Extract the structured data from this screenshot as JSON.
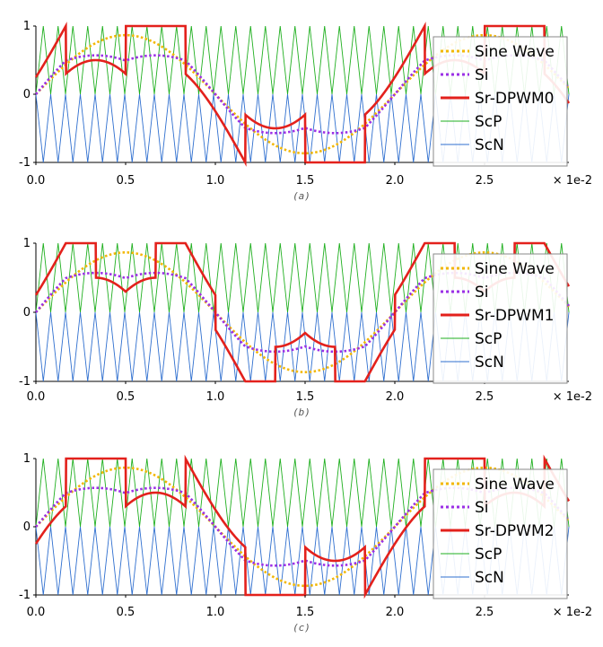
{
  "chart_data": [
    {
      "type": "line",
      "caption": "(a)",
      "x_tick_labels": [
        "0.0",
        "0.5",
        "1.0",
        "1.5",
        "2.0",
        "2.5"
      ],
      "x_scale_label": "× 1e-2",
      "y_tick_labels": [
        "1",
        "0",
        "-1"
      ],
      "xlim": [
        0,
        0.0297
      ],
      "ylim": [
        -1,
        1
      ],
      "legend_position": "right",
      "carrier_cycles": 36,
      "series": [
        {
          "name": "Sine Wave",
          "color": "#F2B705",
          "style": "dotted",
          "kind": "sine"
        },
        {
          "name": "Si",
          "color": "#9B30E6",
          "style": "dotted",
          "kind": "si"
        },
        {
          "name": "Sr-DPWM0",
          "color": "#E3211C",
          "style": "solid",
          "kind": "sr",
          "dpwm": 0
        },
        {
          "name": "ScP",
          "color": "#1FAF1F",
          "style": "solid",
          "kind": "scp"
        },
        {
          "name": "ScN",
          "color": "#2F6FCF",
          "style": "solid",
          "kind": "scn"
        }
      ]
    },
    {
      "type": "line",
      "caption": "(b)",
      "x_tick_labels": [
        "0.0",
        "0.5",
        "1.0",
        "1.5",
        "2.0",
        "2.5"
      ],
      "x_scale_label": "× 1e-2",
      "y_tick_labels": [
        "1",
        "0",
        "-1"
      ],
      "xlim": [
        0,
        0.0297
      ],
      "ylim": [
        -1,
        1
      ],
      "legend_position": "right",
      "carrier_cycles": 36,
      "series": [
        {
          "name": "Sine Wave",
          "color": "#F2B705",
          "style": "dotted",
          "kind": "sine"
        },
        {
          "name": "Si",
          "color": "#9B30E6",
          "style": "dotted",
          "kind": "si"
        },
        {
          "name": "Sr-DPWM1",
          "color": "#E3211C",
          "style": "solid",
          "kind": "sr",
          "dpwm": 1
        },
        {
          "name": "ScP",
          "color": "#1FAF1F",
          "style": "solid",
          "kind": "scp"
        },
        {
          "name": "ScN",
          "color": "#2F6FCF",
          "style": "solid",
          "kind": "scn"
        }
      ]
    },
    {
      "type": "line",
      "caption": "(c)",
      "x_tick_labels": [
        "0.0",
        "0.5",
        "1.0",
        "1.5",
        "2.0",
        "2.5"
      ],
      "x_scale_label": "× 1e-2",
      "y_tick_labels": [
        "1",
        "0",
        "-1"
      ],
      "xlim": [
        0,
        0.0297
      ],
      "ylim": [
        -1,
        1
      ],
      "legend_position": "right",
      "carrier_cycles": 36,
      "series": [
        {
          "name": "Sine Wave",
          "color": "#F2B705",
          "style": "dotted",
          "kind": "sine"
        },
        {
          "name": "Si",
          "color": "#9B30E6",
          "style": "dotted",
          "kind": "si"
        },
        {
          "name": "Sr-DPWM2",
          "color": "#E3211C",
          "style": "solid",
          "kind": "sr",
          "dpwm": 2
        },
        {
          "name": "ScP",
          "color": "#1FAF1F",
          "style": "solid",
          "kind": "scp"
        },
        {
          "name": "ScN",
          "color": "#2F6FCF",
          "style": "solid",
          "kind": "scn"
        }
      ]
    }
  ]
}
